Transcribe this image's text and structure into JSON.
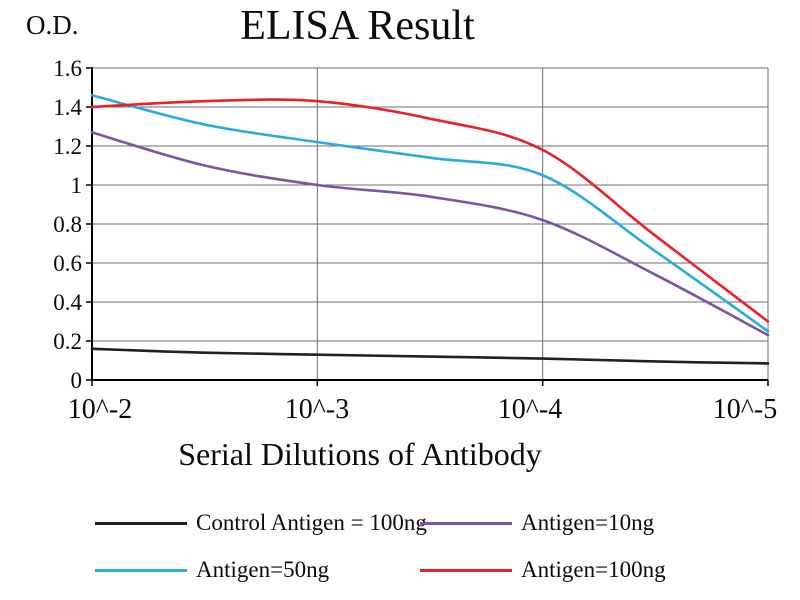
{
  "chart_data": {
    "type": "line",
    "title": "ELISA Result",
    "y_axis_title": "O.D.",
    "xlabel": "Serial Dilutions of Antibody",
    "x_tick_labels": [
      "10^-2",
      "10^-3",
      "10^-4",
      "10^-5"
    ],
    "y_ticks": [
      0,
      0.2,
      0.4,
      0.6,
      0.8,
      1,
      1.2,
      1.4,
      1.6
    ],
    "ylim": [
      0,
      1.6
    ],
    "grid": true,
    "legend_position": "bottom",
    "x_positions": [
      0,
      0.5,
      1,
      1.5,
      2,
      2.5,
      3
    ],
    "series": [
      {
        "name": "Control Antigen = 100ng",
        "color": "#231f20",
        "values": [
          0.16,
          0.14,
          0.13,
          0.12,
          0.11,
          0.095,
          0.085
        ]
      },
      {
        "name": "Antigen=10ng",
        "color": "#7b54a3",
        "values": [
          1.27,
          1.1,
          1.0,
          0.94,
          0.82,
          0.54,
          0.23
        ]
      },
      {
        "name": "Antigen=50ng",
        "color": "#29abe2",
        "values": [
          1.46,
          1.31,
          1.22,
          1.14,
          1.05,
          0.66,
          0.25
        ]
      },
      {
        "name": "Antigen=100ng",
        "color": "#ec2028",
        "values": [
          1.4,
          1.43,
          1.43,
          1.34,
          1.18,
          0.74,
          0.3
        ]
      }
    ],
    "colors": {
      "grid": "#6d6e71",
      "axis": "#000000",
      "text": "#0b0b0b",
      "background": "#ffffff"
    }
  }
}
